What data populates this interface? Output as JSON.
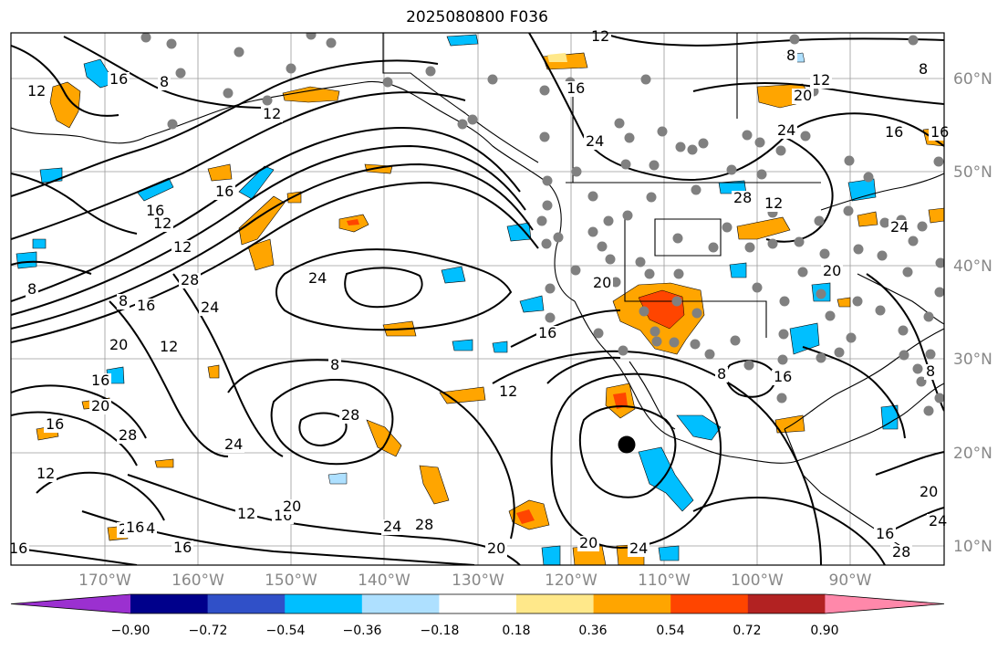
{
  "title": "2025080800 F036",
  "lat_labels": [
    "60°N",
    "50°N",
    "40°N",
    "30°N",
    "20°N",
    "10°N"
  ],
  "lon_labels": [
    "170°W",
    "160°W",
    "150°W",
    "140°W",
    "130°W",
    "120°W",
    "110°W",
    "100°W",
    "90°W"
  ],
  "colorbar": {
    "ticks": [
      "−0.90",
      "−0.72",
      "−0.54",
      "−0.36",
      "−0.18",
      "0.18",
      "0.36",
      "0.54",
      "0.72",
      "0.90"
    ],
    "colors": [
      "#9b30d0",
      "#00008b",
      "#3050c8",
      "#00bfff",
      "#aee0ff",
      "#ffffff",
      "#ffe88a",
      "#ffa500",
      "#ff4500",
      "#b22222",
      "#ff88aa"
    ]
  },
  "contour_labels": [
    "12",
    "8",
    "12",
    "8",
    "12",
    "16",
    "24",
    "16",
    "12",
    "16",
    "8",
    "16",
    "12",
    "24",
    "16",
    "8",
    "16",
    "8",
    "12",
    "28",
    "24",
    "20",
    "12",
    "16",
    "28",
    "20",
    "12",
    "16",
    "20",
    "16",
    "24",
    "16",
    "16",
    "12",
    "16",
    "20",
    "28",
    "24",
    "28",
    "20",
    "8",
    "12",
    "16",
    "20",
    "24",
    "28",
    "12",
    "8",
    "16",
    "24",
    "20",
    "16",
    "8",
    "20",
    "24",
    "28",
    "20",
    "24",
    "16",
    "20",
    "24"
  ]
}
